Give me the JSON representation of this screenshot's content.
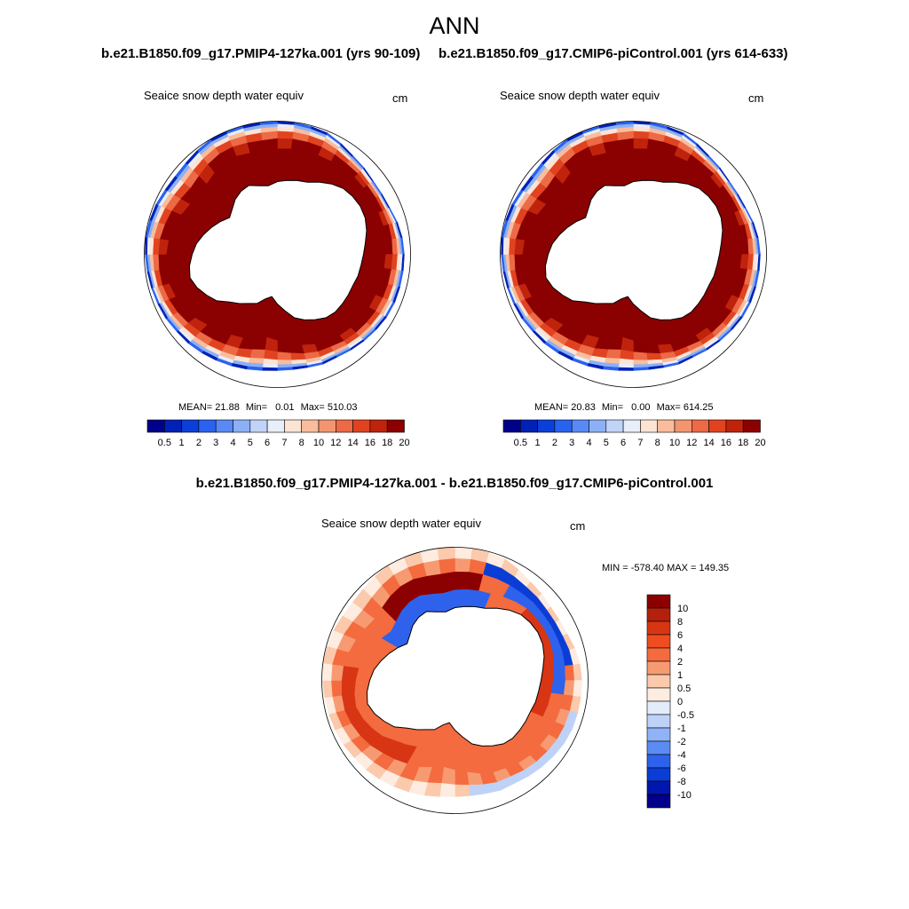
{
  "page_title": "ANN",
  "chart_data": [
    {
      "type": "heatmap",
      "title": "b.e21.B1850.f09_g17.PMIP4-127ka.001 (yrs 90-109)",
      "variable_label": "Seaice snow depth water equiv",
      "units": "cm",
      "stats": {
        "mean_label": "MEAN=",
        "mean": "21.88",
        "min_label": "Min=",
        "min": "0.01",
        "max_label": "Max=",
        "max": "510.03"
      },
      "colorbar": {
        "orientation": "horizontal",
        "levels": [
          "0.5",
          "1",
          "2",
          "3",
          "4",
          "5",
          "6",
          "7",
          "8",
          "10",
          "12",
          "14",
          "16",
          "18",
          "20"
        ],
        "colors": [
          "#00008b",
          "#0021b5",
          "#0a3fd8",
          "#2a62f0",
          "#5889f5",
          "#8cb0f6",
          "#c1d4f7",
          "#e8eefa",
          "#fce4d4",
          "#f9bd9d",
          "#f39570",
          "#ec6a45",
          "#e14320",
          "#c0230c",
          "#8b0000"
        ]
      },
      "projection": "south-polar-stereographic"
    },
    {
      "type": "heatmap",
      "title": "b.e21.B1850.f09_g17.CMIP6-piControl.001 (yrs 614-633)",
      "variable_label": "Seaice snow depth water equiv",
      "units": "cm",
      "stats": {
        "mean_label": "MEAN=",
        "mean": "20.83",
        "min_label": "Min=",
        "min": "0.00",
        "max_label": "Max=",
        "max": "614.25"
      },
      "colorbar": {
        "orientation": "horizontal",
        "levels": [
          "0.5",
          "1",
          "2",
          "3",
          "4",
          "5",
          "6",
          "7",
          "8",
          "10",
          "12",
          "14",
          "16",
          "18",
          "20"
        ],
        "colors": [
          "#00008b",
          "#0021b5",
          "#0a3fd8",
          "#2a62f0",
          "#5889f5",
          "#8cb0f6",
          "#c1d4f7",
          "#e8eefa",
          "#fce4d4",
          "#f9bd9d",
          "#f39570",
          "#ec6a45",
          "#e14320",
          "#c0230c",
          "#8b0000"
        ]
      },
      "projection": "south-polar-stereographic"
    },
    {
      "type": "heatmap",
      "title": "b.e21.B1850.f09_g17.PMIP4-127ka.001 - b.e21.B1850.f09_g17.CMIP6-piControl.001",
      "variable_label": "Seaice snow depth water equiv",
      "units": "cm",
      "stats": {
        "min_label": "MIN =",
        "min": "-578.40",
        "max_label": "MAX =",
        "max": "149.35"
      },
      "colorbar": {
        "orientation": "vertical",
        "levels": [
          "10",
          "8",
          "6",
          "4",
          "2",
          "1",
          "0.5",
          "0",
          "-0.5",
          "-1",
          "-2",
          "-4",
          "-6",
          "-8",
          "-10"
        ],
        "colors": [
          "#8b0000",
          "#b5200c",
          "#d83514",
          "#ef4d1f",
          "#f36b3f",
          "#f79a72",
          "#fbc9ab",
          "#fdecdf",
          "#e3ecfa",
          "#bed2f8",
          "#90b2f6",
          "#5b8cf3",
          "#2e62ec",
          "#0a3dd6",
          "#0016ac",
          "#00008b"
        ]
      },
      "projection": "south-polar-stereographic"
    }
  ]
}
